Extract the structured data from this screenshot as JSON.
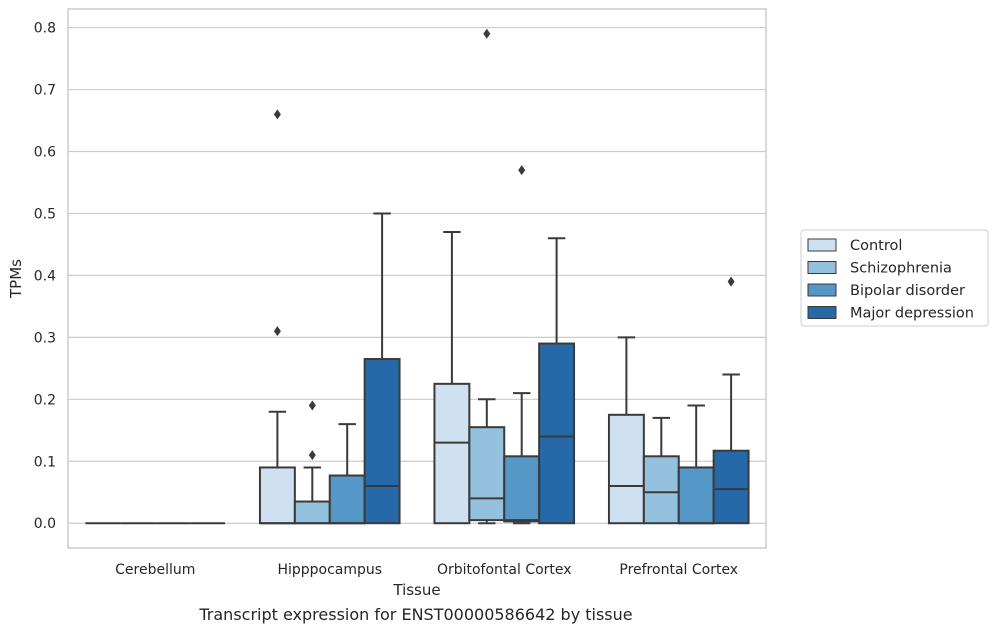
{
  "caption": "Transcript expression for ENST00000586642 by tissue",
  "chart_data": {
    "type": "box",
    "xlabel": "Tissue",
    "ylabel": "TPMs",
    "ylim": [
      -0.04,
      0.83
    ],
    "yticks": [
      0.0,
      0.1,
      0.2,
      0.3,
      0.4,
      0.5,
      0.6,
      0.7,
      0.8
    ],
    "ytick_labels": [
      "0.0",
      "0.1",
      "0.2",
      "0.3",
      "0.4",
      "0.5",
      "0.6",
      "0.7",
      "0.8"
    ],
    "grid": "horizontal",
    "legend_position": "right",
    "categories": [
      "Cerebellum",
      "Hipppocampus",
      "Orbitofontal Cortex",
      "Prefrontal Cortex"
    ],
    "series": [
      {
        "name": "Control",
        "color": "#cfe0f0",
        "boxes": [
          {
            "q1": 0.0,
            "median": 0.0,
            "q3": 0.0,
            "whisker_low": 0.0,
            "whisker_high": 0.0,
            "outliers": []
          },
          {
            "q1": 0.0,
            "median": 0.0,
            "q3": 0.09,
            "whisker_low": 0.0,
            "whisker_high": 0.18,
            "outliers": [
              0.31,
              0.66
            ]
          },
          {
            "q1": 0.0,
            "median": 0.13,
            "q3": 0.225,
            "whisker_low": 0.0,
            "whisker_high": 0.47,
            "outliers": []
          },
          {
            "q1": 0.0,
            "median": 0.06,
            "q3": 0.175,
            "whisker_low": 0.0,
            "whisker_high": 0.3,
            "outliers": []
          }
        ]
      },
      {
        "name": "Schizophrenia",
        "color": "#94c1dd",
        "boxes": [
          {
            "q1": 0.0,
            "median": 0.0,
            "q3": 0.0,
            "whisker_low": 0.0,
            "whisker_high": 0.0,
            "outliers": []
          },
          {
            "q1": 0.0,
            "median": 0.0,
            "q3": 0.035,
            "whisker_low": 0.0,
            "whisker_high": 0.09,
            "outliers": [
              0.11,
              0.19
            ]
          },
          {
            "q1": 0.005,
            "median": 0.04,
            "q3": 0.155,
            "whisker_low": 0.0,
            "whisker_high": 0.2,
            "outliers": [
              0.79
            ]
          },
          {
            "q1": 0.0,
            "median": 0.05,
            "q3": 0.108,
            "whisker_low": 0.0,
            "whisker_high": 0.17,
            "outliers": []
          }
        ]
      },
      {
        "name": "Bipolar disorder",
        "color": "#5597c7",
        "boxes": [
          {
            "q1": 0.0,
            "median": 0.0,
            "q3": 0.0,
            "whisker_low": 0.0,
            "whisker_high": 0.0,
            "outliers": []
          },
          {
            "q1": 0.0,
            "median": 0.0,
            "q3": 0.077,
            "whisker_low": 0.0,
            "whisker_high": 0.16,
            "outliers": []
          },
          {
            "q1": 0.003,
            "median": 0.005,
            "q3": 0.108,
            "whisker_low": 0.0,
            "whisker_high": 0.21,
            "outliers": [
              0.57
            ]
          },
          {
            "q1": 0.0,
            "median": 0.0,
            "q3": 0.09,
            "whisker_low": 0.0,
            "whisker_high": 0.19,
            "outliers": []
          }
        ]
      },
      {
        "name": "Major depression",
        "color": "#2669a8",
        "boxes": [
          {
            "q1": 0.0,
            "median": 0.0,
            "q3": 0.0,
            "whisker_low": 0.0,
            "whisker_high": 0.0,
            "outliers": []
          },
          {
            "q1": 0.0,
            "median": 0.06,
            "q3": 0.265,
            "whisker_low": 0.0,
            "whisker_high": 0.5,
            "outliers": []
          },
          {
            "q1": 0.0,
            "median": 0.14,
            "q3": 0.29,
            "whisker_low": 0.0,
            "whisker_high": 0.46,
            "outliers": []
          },
          {
            "q1": 0.0,
            "median": 0.055,
            "q3": 0.117,
            "whisker_low": 0.0,
            "whisker_high": 0.24,
            "outliers": [
              0.39
            ]
          }
        ]
      }
    ]
  }
}
